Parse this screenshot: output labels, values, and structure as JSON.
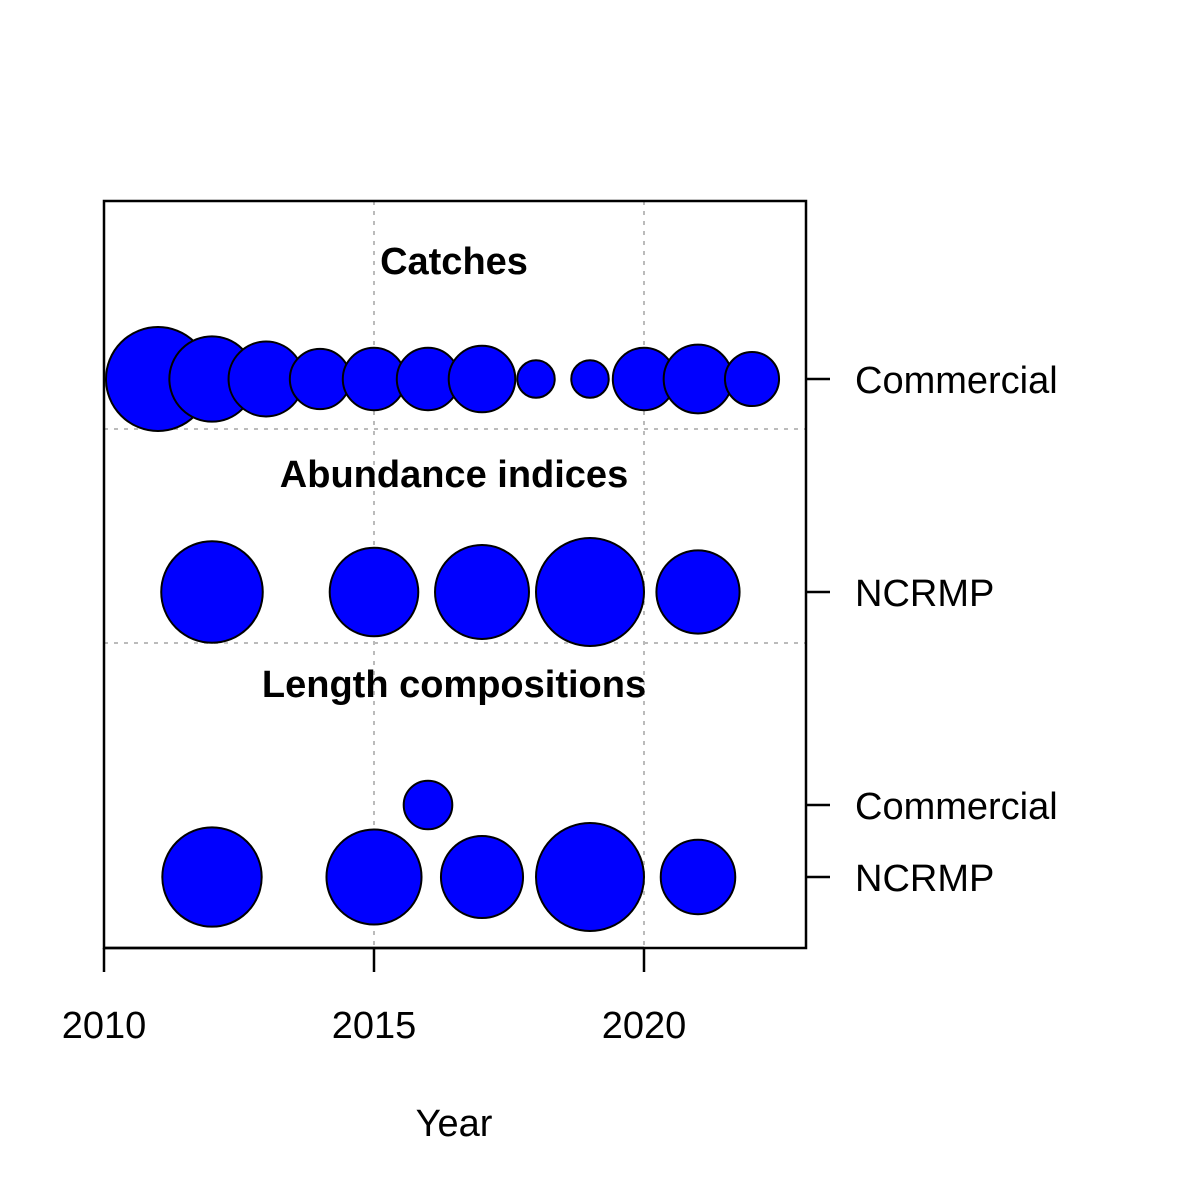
{
  "chart_data": {
    "type": "scatter",
    "title": "",
    "xlabel": "Year",
    "ylabel": "",
    "xlim": [
      2010,
      2023
    ],
    "x_ticks": [
      "2010",
      "2015",
      "2020"
    ],
    "x_tick_values": [
      2010,
      2015,
      2020
    ],
    "grid": true,
    "bubble_color": "#0000ff",
    "sections": [
      {
        "title": "Catches",
        "rows": [
          {
            "label": "Commercial",
            "years": [
              2011,
              2012,
              2013,
              2014,
              2015,
              2016,
              2017,
              2018,
              2019,
              2020,
              2021,
              2022
            ],
            "relative_size": [
              1.0,
              0.82,
              0.72,
              0.58,
              0.6,
              0.6,
              0.64,
              0.36,
              0.36,
              0.6,
              0.66,
              0.52
            ]
          }
        ]
      },
      {
        "title": "Abundance indices",
        "rows": [
          {
            "label": "NCRMP",
            "years": [
              2012,
              2015,
              2017,
              2019,
              2021
            ],
            "relative_size": [
              0.94,
              0.82,
              0.87,
              1.0,
              0.77
            ]
          }
        ]
      },
      {
        "title": "Length compositions",
        "rows": [
          {
            "label": "Commercial",
            "years": [
              2016
            ],
            "relative_size": [
              0.45
            ]
          },
          {
            "label": "NCRMP",
            "years": [
              2012,
              2015,
              2017,
              2019,
              2021
            ],
            "relative_size": [
              0.92,
              0.88,
              0.76,
              1.0,
              0.69
            ]
          }
        ]
      }
    ]
  }
}
